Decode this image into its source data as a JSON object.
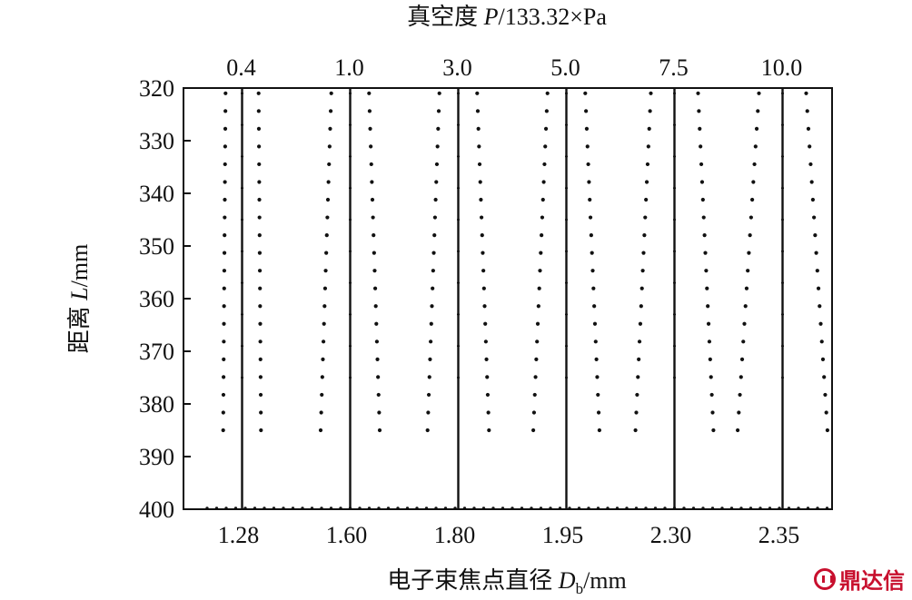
{
  "chart_data": {
    "type": "line",
    "xlabel": "电子束焦点直径 D_b/mm",
    "xlabel_parts": {
      "main": "电子束焦点直径 ",
      "var": "D",
      "sub": "b",
      "unit": "/mm"
    },
    "top_label": "真空度 P/133.32×Pa",
    "top_label_parts": {
      "main": "真空度 ",
      "var": "P",
      "unit": "/133.32×Pa"
    },
    "ylabel": "距离 L/mm",
    "ylabel_parts": {
      "main": "距离 ",
      "var": "L",
      "unit": "/mm"
    },
    "ylim": [
      320,
      400
    ],
    "y_ticks": [
      "320",
      "330",
      "340",
      "350",
      "360",
      "370",
      "380",
      "390",
      "400"
    ],
    "y_inverted": true,
    "categories": [
      "1.28",
      "1.60",
      "1.80",
      "1.95",
      "2.30",
      "2.35"
    ],
    "top_categories": [
      "0.4",
      "1.0",
      "3.0",
      "5.0",
      "7.5",
      "10.0"
    ],
    "focus_L": 400,
    "beam_profiles": [
      {
        "focus_diameter": "1.28",
        "vacuum": "0.4",
        "half_width_top": 0.14,
        "half_width_bottom": 0.16
      },
      {
        "focus_diameter": "1.60",
        "vacuum": "1.0",
        "half_width_top": 0.16,
        "half_width_bottom": 0.25
      },
      {
        "focus_diameter": "1.80",
        "vacuum": "3.0",
        "half_width_top": 0.16,
        "half_width_bottom": 0.26
      },
      {
        "focus_diameter": "1.95",
        "vacuum": "5.0",
        "half_width_top": 0.16,
        "half_width_bottom": 0.28
      },
      {
        "focus_diameter": "2.30",
        "vacuum": "7.5",
        "half_width_top": 0.2,
        "half_width_bottom": 0.33
      },
      {
        "focus_diameter": "2.35",
        "vacuum": "10.0",
        "half_width_top": 0.2,
        "half_width_bottom": 0.38
      }
    ],
    "profile_L_start": 321,
    "profile_L_end": 385,
    "grid": false,
    "legend": "none"
  },
  "watermark": {
    "text": "鼎达信",
    "icon": "logo-circle-icon",
    "color": "#c8102e"
  }
}
